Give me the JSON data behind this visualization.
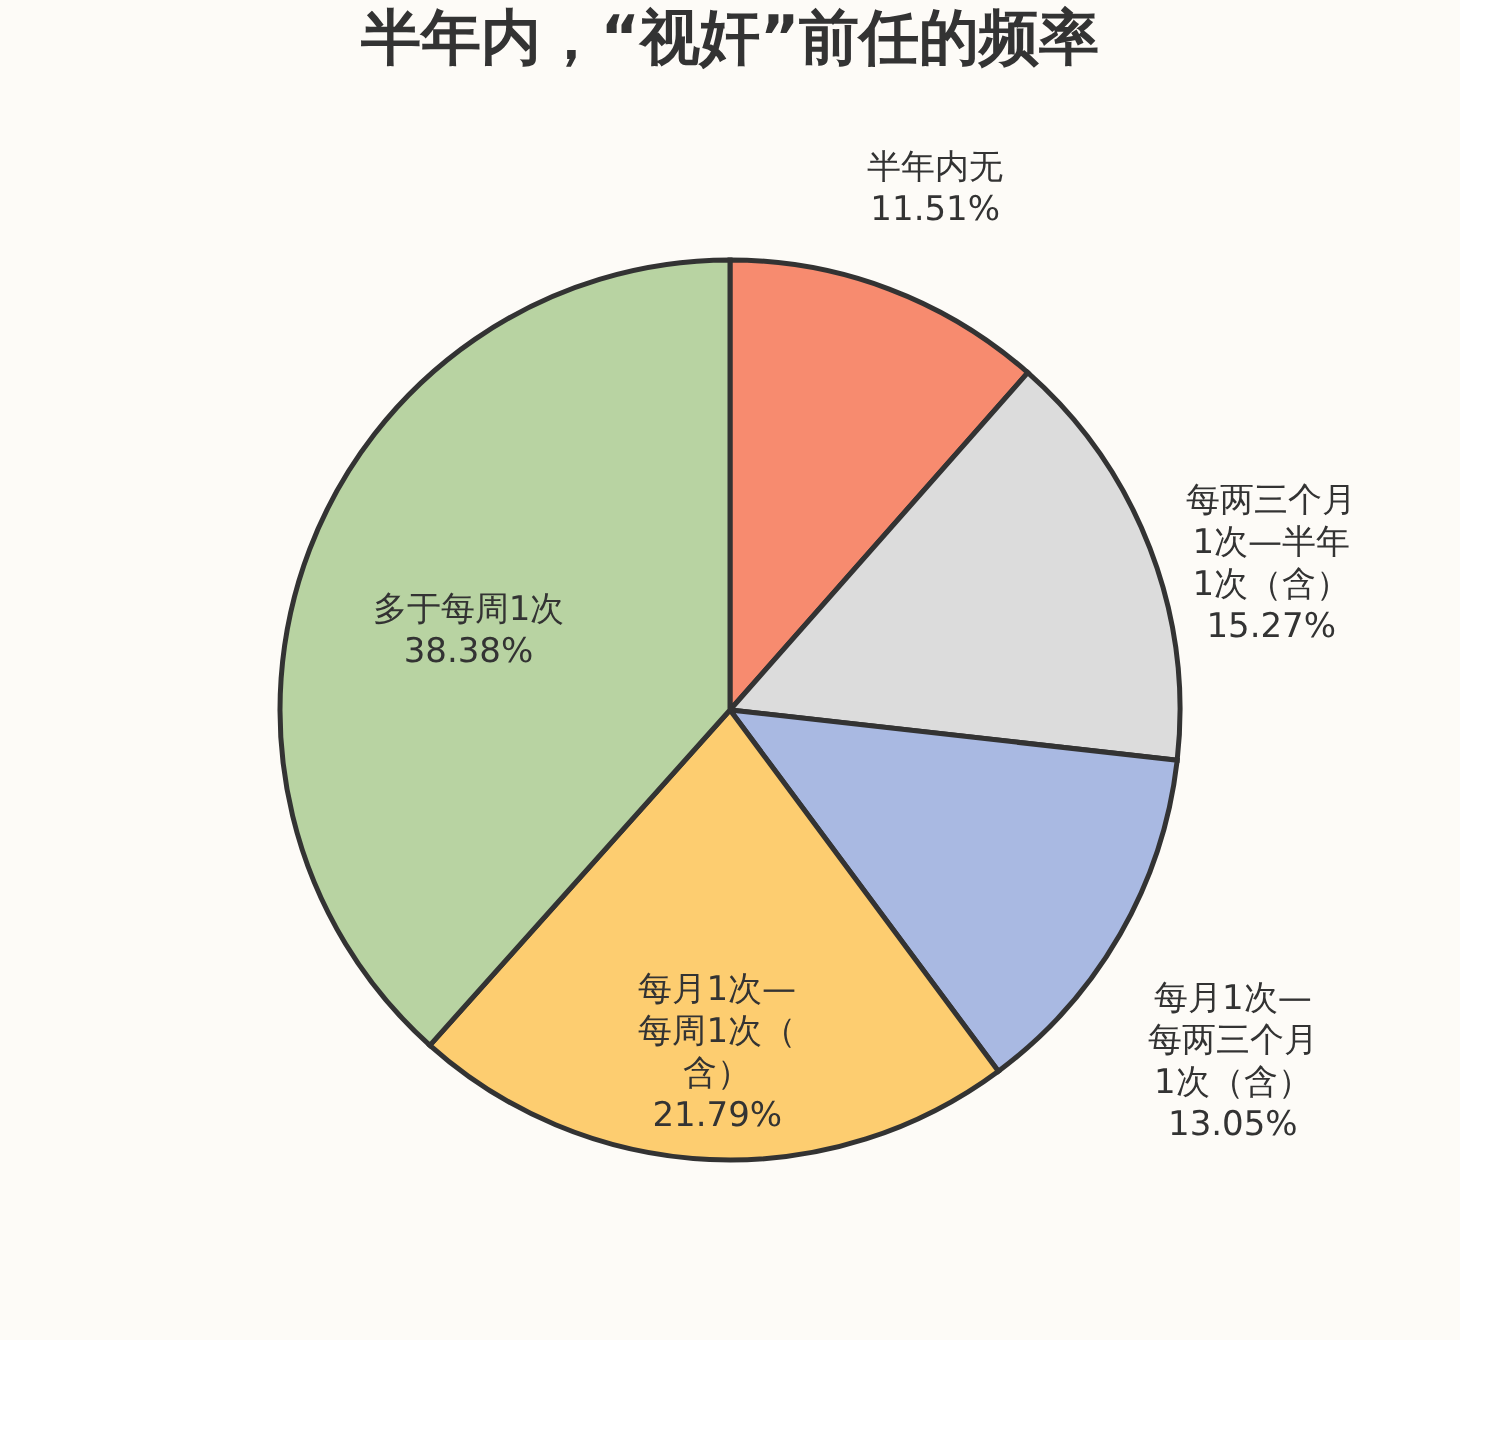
{
  "chart_data": {
    "type": "pie",
    "title": "半年内，“视奸”前任的频率",
    "categories": [
      "半年内无",
      "每两三个月1次—半年1次（含）",
      "每月1次—每两三个月1次（含）",
      "每月1次—每周1次（含）",
      "多于每周1次"
    ],
    "values": [
      11.51,
      15.27,
      13.05,
      21.79,
      38.38
    ],
    "value_labels": [
      "11.51%",
      "15.27%",
      "13.05%",
      "21.79%",
      "38.38%"
    ],
    "colors": [
      "#f78b6f",
      "#dcdcdc",
      "#a9b9e2",
      "#fdcd70",
      "#b8d3a2"
    ],
    "legend": false
  }
}
